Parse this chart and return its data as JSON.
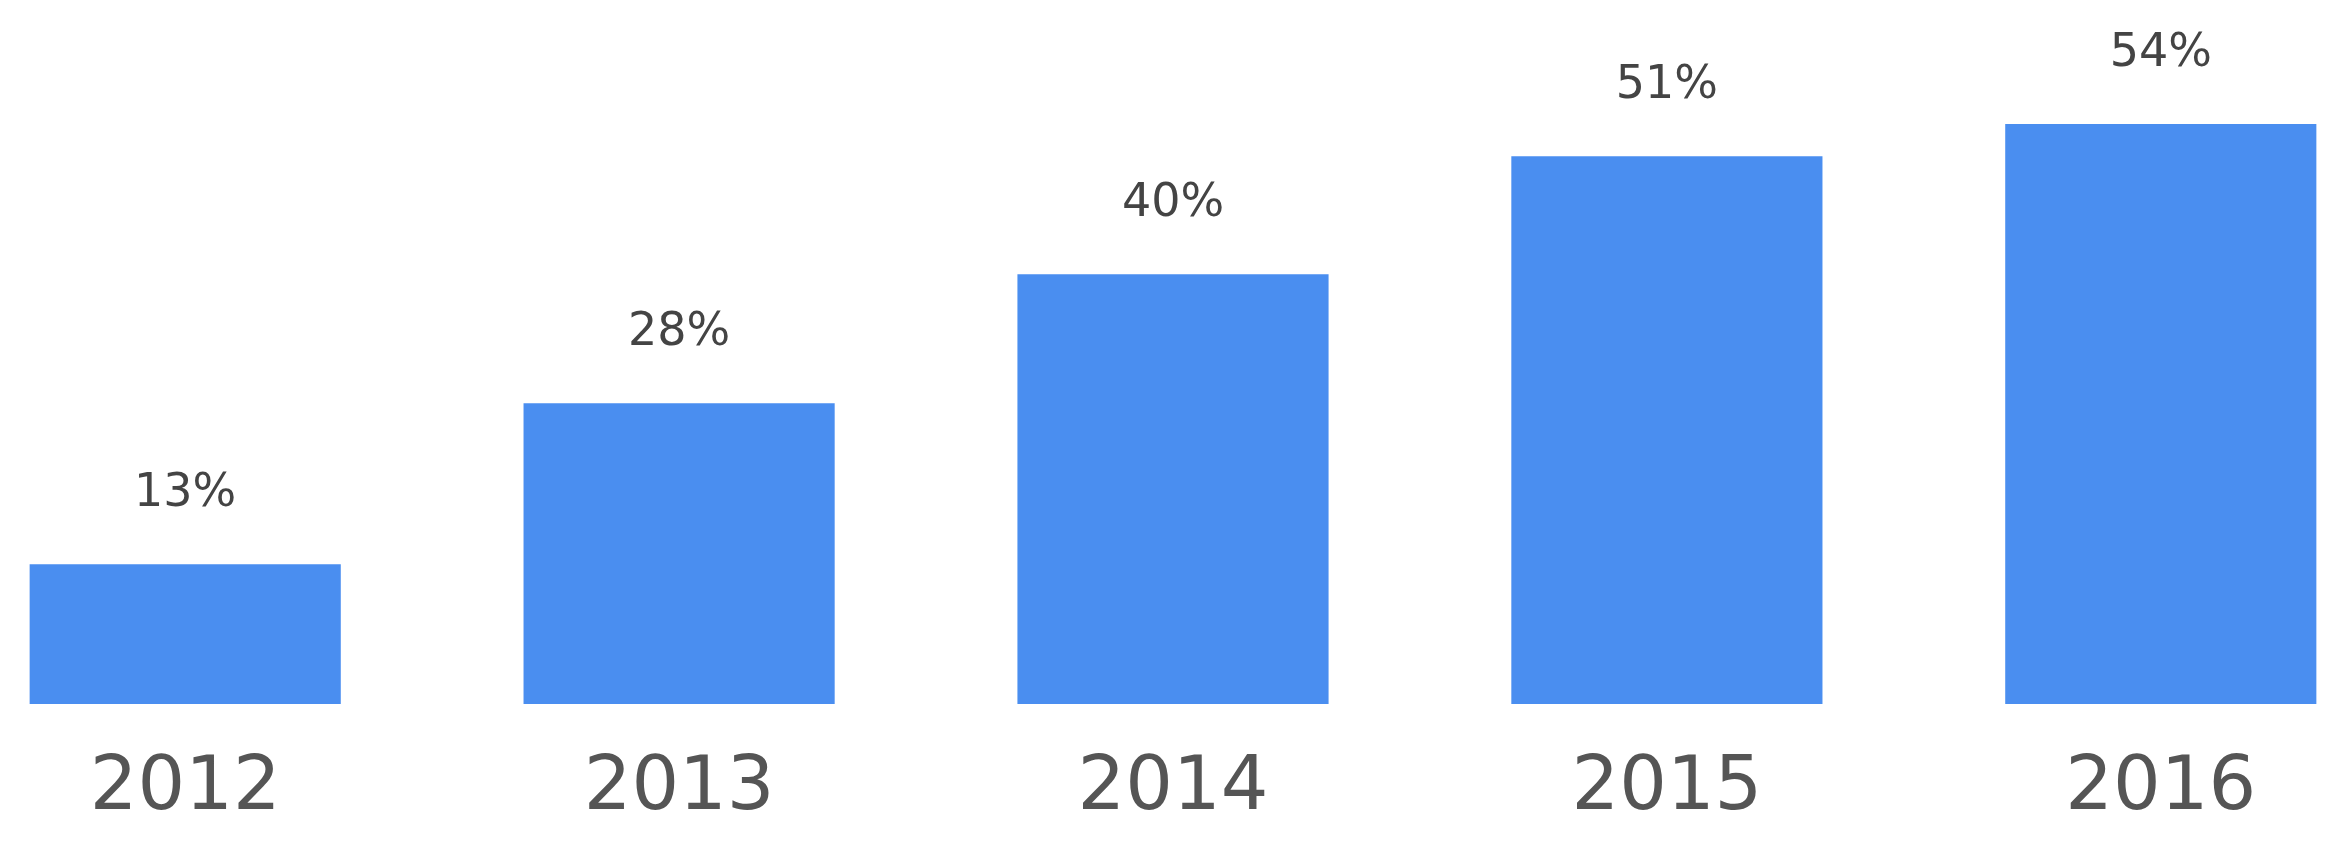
{
  "chart_data": {
    "type": "bar",
    "categories": [
      "2012",
      "2013",
      "2014",
      "2015",
      "2016"
    ],
    "values": [
      13,
      28,
      40,
      51,
      54
    ],
    "value_labels": [
      "13%",
      "28%",
      "40%",
      "51%",
      "54%"
    ],
    "color": "#4a8ef0"
  }
}
